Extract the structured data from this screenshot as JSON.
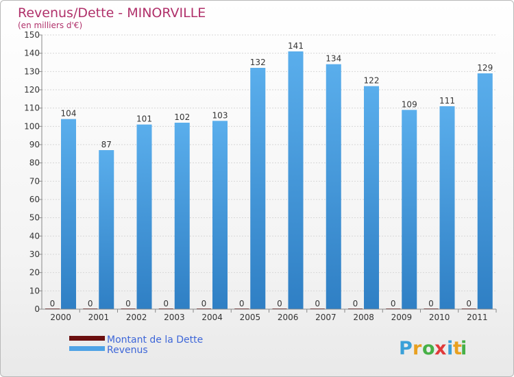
{
  "chart_data": {
    "type": "bar",
    "title": "Revenus/Dette - MINORVILLE",
    "subtitle": "(en milliers d'€)",
    "categories": [
      "2000",
      "2001",
      "2002",
      "2003",
      "2004",
      "2005",
      "2006",
      "2007",
      "2008",
      "2009",
      "2010",
      "2011"
    ],
    "series": [
      {
        "name": "Montant de la Dette",
        "color": "#6b0f0f",
        "values": [
          0,
          0,
          0,
          0,
          0,
          0,
          0,
          0,
          0,
          0,
          0,
          0
        ]
      },
      {
        "name": "Revenus",
        "color": "#4fa3e6",
        "values": [
          104,
          87,
          101,
          102,
          103,
          132,
          141,
          134,
          122,
          109,
          111,
          129
        ]
      }
    ],
    "ylim": [
      0,
      150
    ],
    "yticks": [
      0,
      10,
      20,
      30,
      40,
      50,
      60,
      70,
      80,
      90,
      100,
      110,
      120,
      130,
      140,
      150
    ],
    "grid": true,
    "legend_position": "bottom-left"
  },
  "branding": {
    "logo_letters": [
      "P",
      "r",
      "o",
      "x",
      "i",
      "t",
      "i"
    ],
    "logo_colors": [
      "#3aa0d8",
      "#e8a020",
      "#46b046",
      "#e03a3a",
      "#3aa0d8",
      "#e8a020",
      "#46b046"
    ]
  }
}
